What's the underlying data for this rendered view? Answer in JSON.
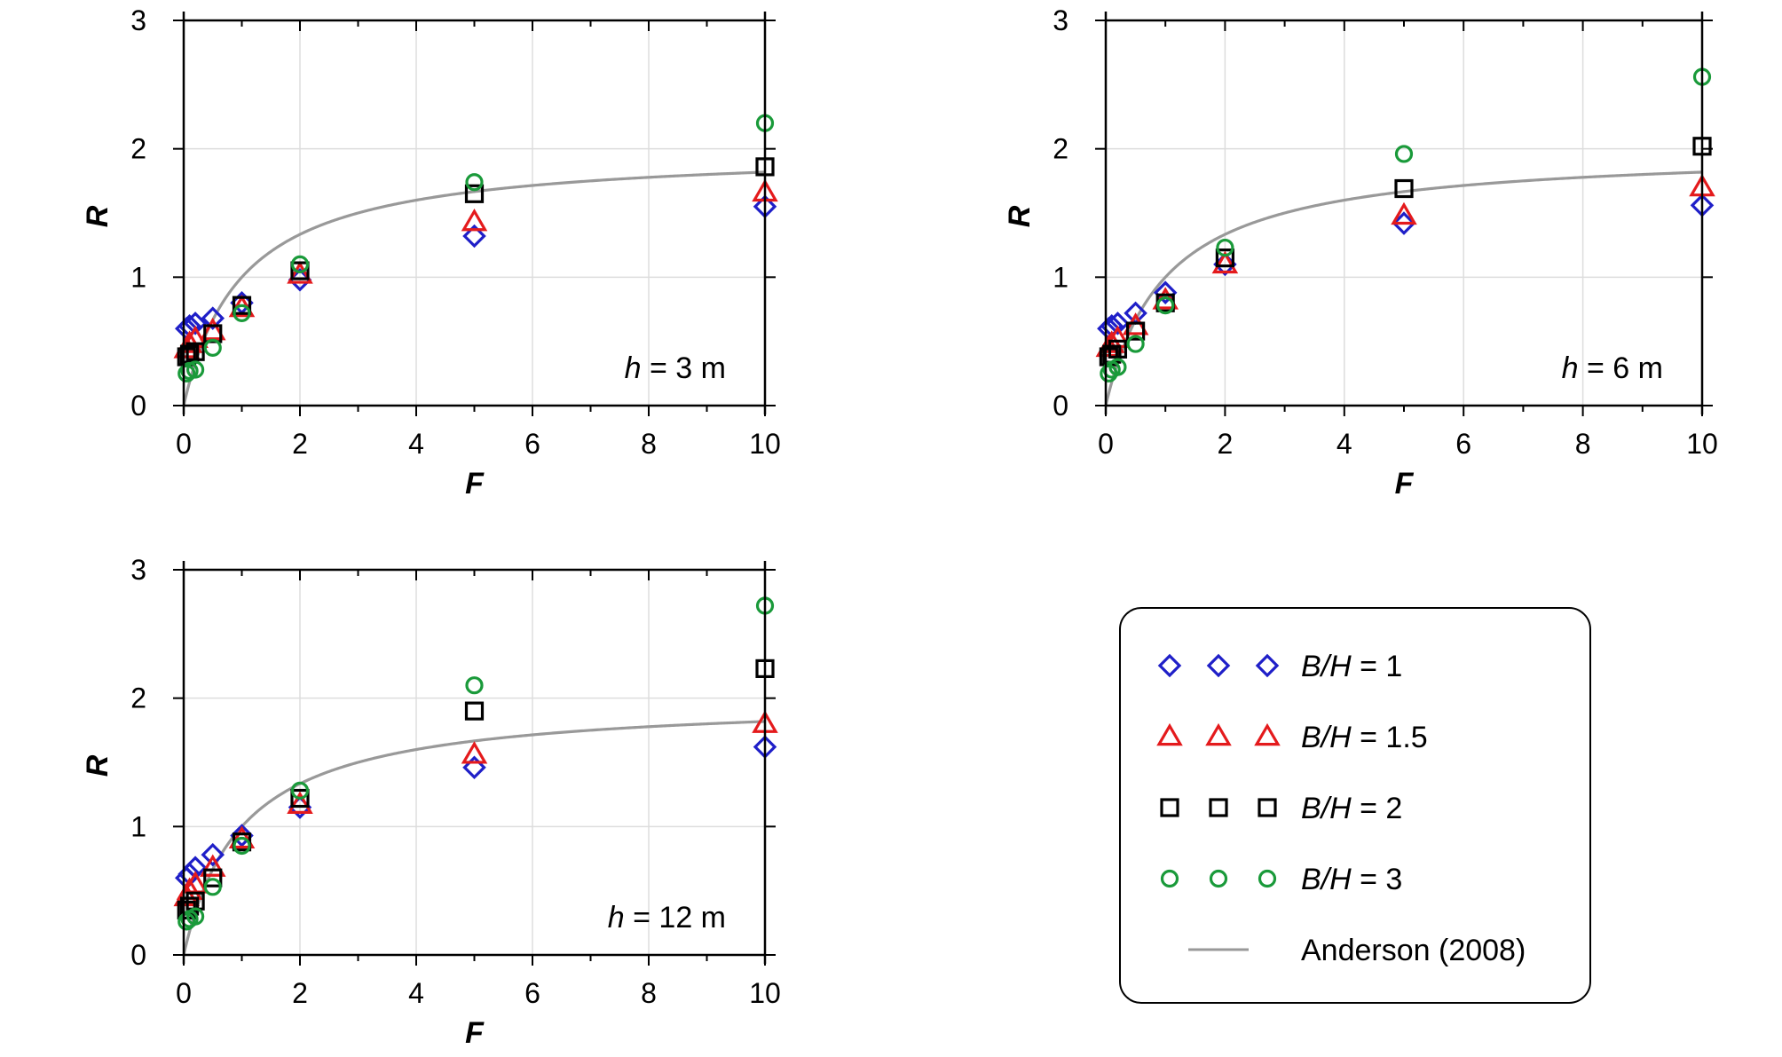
{
  "chart_data": [
    {
      "type": "scatter",
      "title": "",
      "annotation": {
        "var": "h",
        "rest": " = 3 m"
      },
      "xlabel": "F",
      "ylabel": "R",
      "xlim": [
        0,
        10
      ],
      "ylim": [
        0,
        3
      ],
      "xticks": [
        "0",
        "2",
        "4",
        "6",
        "8",
        "10"
      ],
      "yticks": [
        "0",
        "1",
        "2",
        "3"
      ],
      "grid": true,
      "series": [
        {
          "name": "B/H = 1",
          "marker": "diamond",
          "color": "#1f1fc8",
          "x": [
            0.05,
            0.1,
            0.2,
            0.5,
            1,
            2,
            5,
            10
          ],
          "y": [
            0.6,
            0.62,
            0.64,
            0.68,
            0.8,
            0.98,
            1.32,
            1.55
          ]
        },
        {
          "name": "B/H = 1.5",
          "marker": "triangle",
          "color": "#e41a1c",
          "x": [
            0.05,
            0.1,
            0.2,
            0.5,
            1,
            2,
            5,
            10
          ],
          "y": [
            0.44,
            0.48,
            0.52,
            0.58,
            0.76,
            1.02,
            1.43,
            1.66
          ]
        },
        {
          "name": "B/H = 2",
          "marker": "square",
          "color": "#000000",
          "x": [
            0.05,
            0.1,
            0.2,
            0.5,
            1,
            2,
            5,
            10
          ],
          "y": [
            0.38,
            0.4,
            0.42,
            0.56,
            0.78,
            1.05,
            1.65,
            1.86
          ]
        },
        {
          "name": "B/H = 3",
          "marker": "circle",
          "color": "#1a9a3a",
          "x": [
            0.05,
            0.1,
            0.2,
            0.5,
            1,
            2,
            5,
            10
          ],
          "y": [
            0.25,
            0.27,
            0.28,
            0.45,
            0.72,
            1.1,
            1.74,
            2.2
          ]
        }
      ]
    },
    {
      "type": "scatter",
      "title": "",
      "annotation": {
        "var": "h",
        "rest": " = 6 m"
      },
      "xlabel": "F",
      "ylabel": "R",
      "xlim": [
        0,
        10
      ],
      "ylim": [
        0,
        3
      ],
      "xticks": [
        "0",
        "2",
        "4",
        "6",
        "8",
        "10"
      ],
      "yticks": [
        "0",
        "1",
        "2",
        "3"
      ],
      "grid": true,
      "series": [
        {
          "name": "B/H = 1",
          "marker": "diamond",
          "color": "#1f1fc8",
          "x": [
            0.05,
            0.1,
            0.2,
            0.5,
            1,
            2,
            5,
            10
          ],
          "y": [
            0.6,
            0.62,
            0.64,
            0.72,
            0.88,
            1.1,
            1.42,
            1.56
          ]
        },
        {
          "name": "B/H = 1.5",
          "marker": "triangle",
          "color": "#e41a1c",
          "x": [
            0.05,
            0.1,
            0.2,
            0.5,
            1,
            2,
            5,
            10
          ],
          "y": [
            0.45,
            0.48,
            0.52,
            0.62,
            0.82,
            1.1,
            1.48,
            1.7
          ]
        },
        {
          "name": "B/H = 2",
          "marker": "square",
          "color": "#000000",
          "x": [
            0.05,
            0.1,
            0.2,
            0.5,
            1,
            2,
            5,
            10
          ],
          "y": [
            0.38,
            0.4,
            0.44,
            0.58,
            0.8,
            1.15,
            1.69,
            2.02
          ]
        },
        {
          "name": "B/H = 3",
          "marker": "circle",
          "color": "#1a9a3a",
          "x": [
            0.05,
            0.1,
            0.2,
            0.5,
            1,
            2,
            5,
            10
          ],
          "y": [
            0.25,
            0.28,
            0.3,
            0.48,
            0.78,
            1.23,
            1.96,
            2.56
          ]
        }
      ]
    },
    {
      "type": "scatter",
      "title": "",
      "annotation": {
        "var": "h",
        "rest": " = 12 m"
      },
      "xlabel": "F",
      "ylabel": "R",
      "xlim": [
        0,
        10
      ],
      "ylim": [
        0,
        3
      ],
      "xticks": [
        "0",
        "2",
        "4",
        "6",
        "8",
        "10"
      ],
      "yticks": [
        "0",
        "1",
        "2",
        "3"
      ],
      "grid": true,
      "series": [
        {
          "name": "B/H = 1",
          "marker": "diamond",
          "color": "#1f1fc8",
          "x": [
            0.05,
            0.1,
            0.2,
            0.5,
            1,
            2,
            5,
            10
          ],
          "y": [
            0.6,
            0.63,
            0.68,
            0.78,
            0.93,
            1.15,
            1.46,
            1.62
          ]
        },
        {
          "name": "B/H = 1.5",
          "marker": "triangle",
          "color": "#e41a1c",
          "x": [
            0.05,
            0.1,
            0.2,
            0.5,
            1,
            2,
            5,
            10
          ],
          "y": [
            0.45,
            0.5,
            0.55,
            0.68,
            0.9,
            1.17,
            1.56,
            1.8
          ]
        },
        {
          "name": "B/H = 2",
          "marker": "square",
          "color": "#000000",
          "x": [
            0.05,
            0.1,
            0.2,
            0.5,
            1,
            2,
            5,
            10
          ],
          "y": [
            0.35,
            0.38,
            0.42,
            0.6,
            0.88,
            1.22,
            1.9,
            2.23
          ]
        },
        {
          "name": "B/H = 3",
          "marker": "circle",
          "color": "#1a9a3a",
          "x": [
            0.05,
            0.1,
            0.2,
            0.5,
            1,
            2,
            5,
            10
          ],
          "y": [
            0.26,
            0.28,
            0.3,
            0.53,
            0.85,
            1.28,
            2.1,
            2.72
          ]
        }
      ]
    }
  ],
  "legend": {
    "placement": "bottom-right",
    "items": [
      {
        "var": "B/H",
        "rest": " = 1",
        "marker": "diamond",
        "color": "#1f1fc8"
      },
      {
        "var": "B/H",
        "rest": " = 1.5",
        "marker": "triangle",
        "color": "#e41a1c"
      },
      {
        "var": "B/H",
        "rest": " = 2",
        "marker": "square",
        "color": "#000000"
      },
      {
        "var": "B/H",
        "rest": " = 3",
        "marker": "circle",
        "color": "#1a9a3a"
      },
      {
        "label": "Anderson (2008)",
        "marker": "line",
        "color": "#999999"
      }
    ]
  },
  "curve": {
    "name": "Anderson (2008)",
    "color": "#999999",
    "equation": "R = 2F/(1+F)"
  }
}
